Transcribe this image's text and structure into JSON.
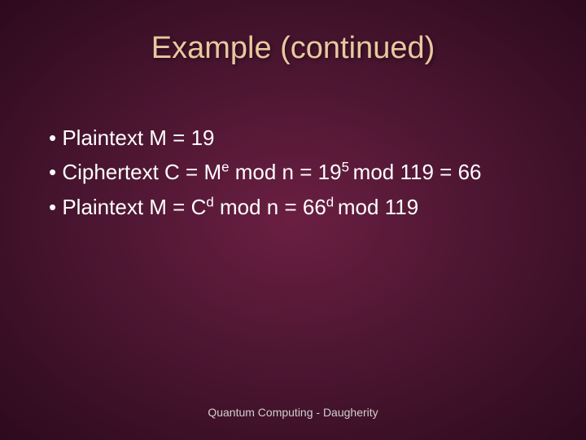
{
  "slide": {
    "title": "Example (continued)",
    "bullets": {
      "b1_pre": "Plaintext M = ",
      "b1_val": "19",
      "b2_pre": "Ciphertext C = M",
      "b2_sup1": "e",
      "b2_mid1": " mod n = ",
      "b2_val": "19",
      "b2_sup2": "5 ",
      "b2_mid2": "mod ",
      "b2_n": "119",
      "b2_eq": " = ",
      "b2_res": "66",
      "b3_pre": "Plaintext M = C",
      "b3_sup1": "d",
      "b3_mid1": " mod n = ",
      "b3_val": "66",
      "b3_sup2": "d ",
      "b3_mid2": "mod ",
      "b3_n": "119"
    },
    "footer": "Quantum Computing - Daugherity"
  },
  "colors": {
    "title_color": "#e8c8a0",
    "text_color": "#ffffff",
    "bg_inner": "#6b1f42",
    "bg_mid": "#4a1530",
    "bg_outer": "#2d0a1d"
  },
  "typography": {
    "title_fontsize": 38,
    "body_fontsize": 26,
    "footer_fontsize": 14,
    "font_family": "Arial"
  }
}
